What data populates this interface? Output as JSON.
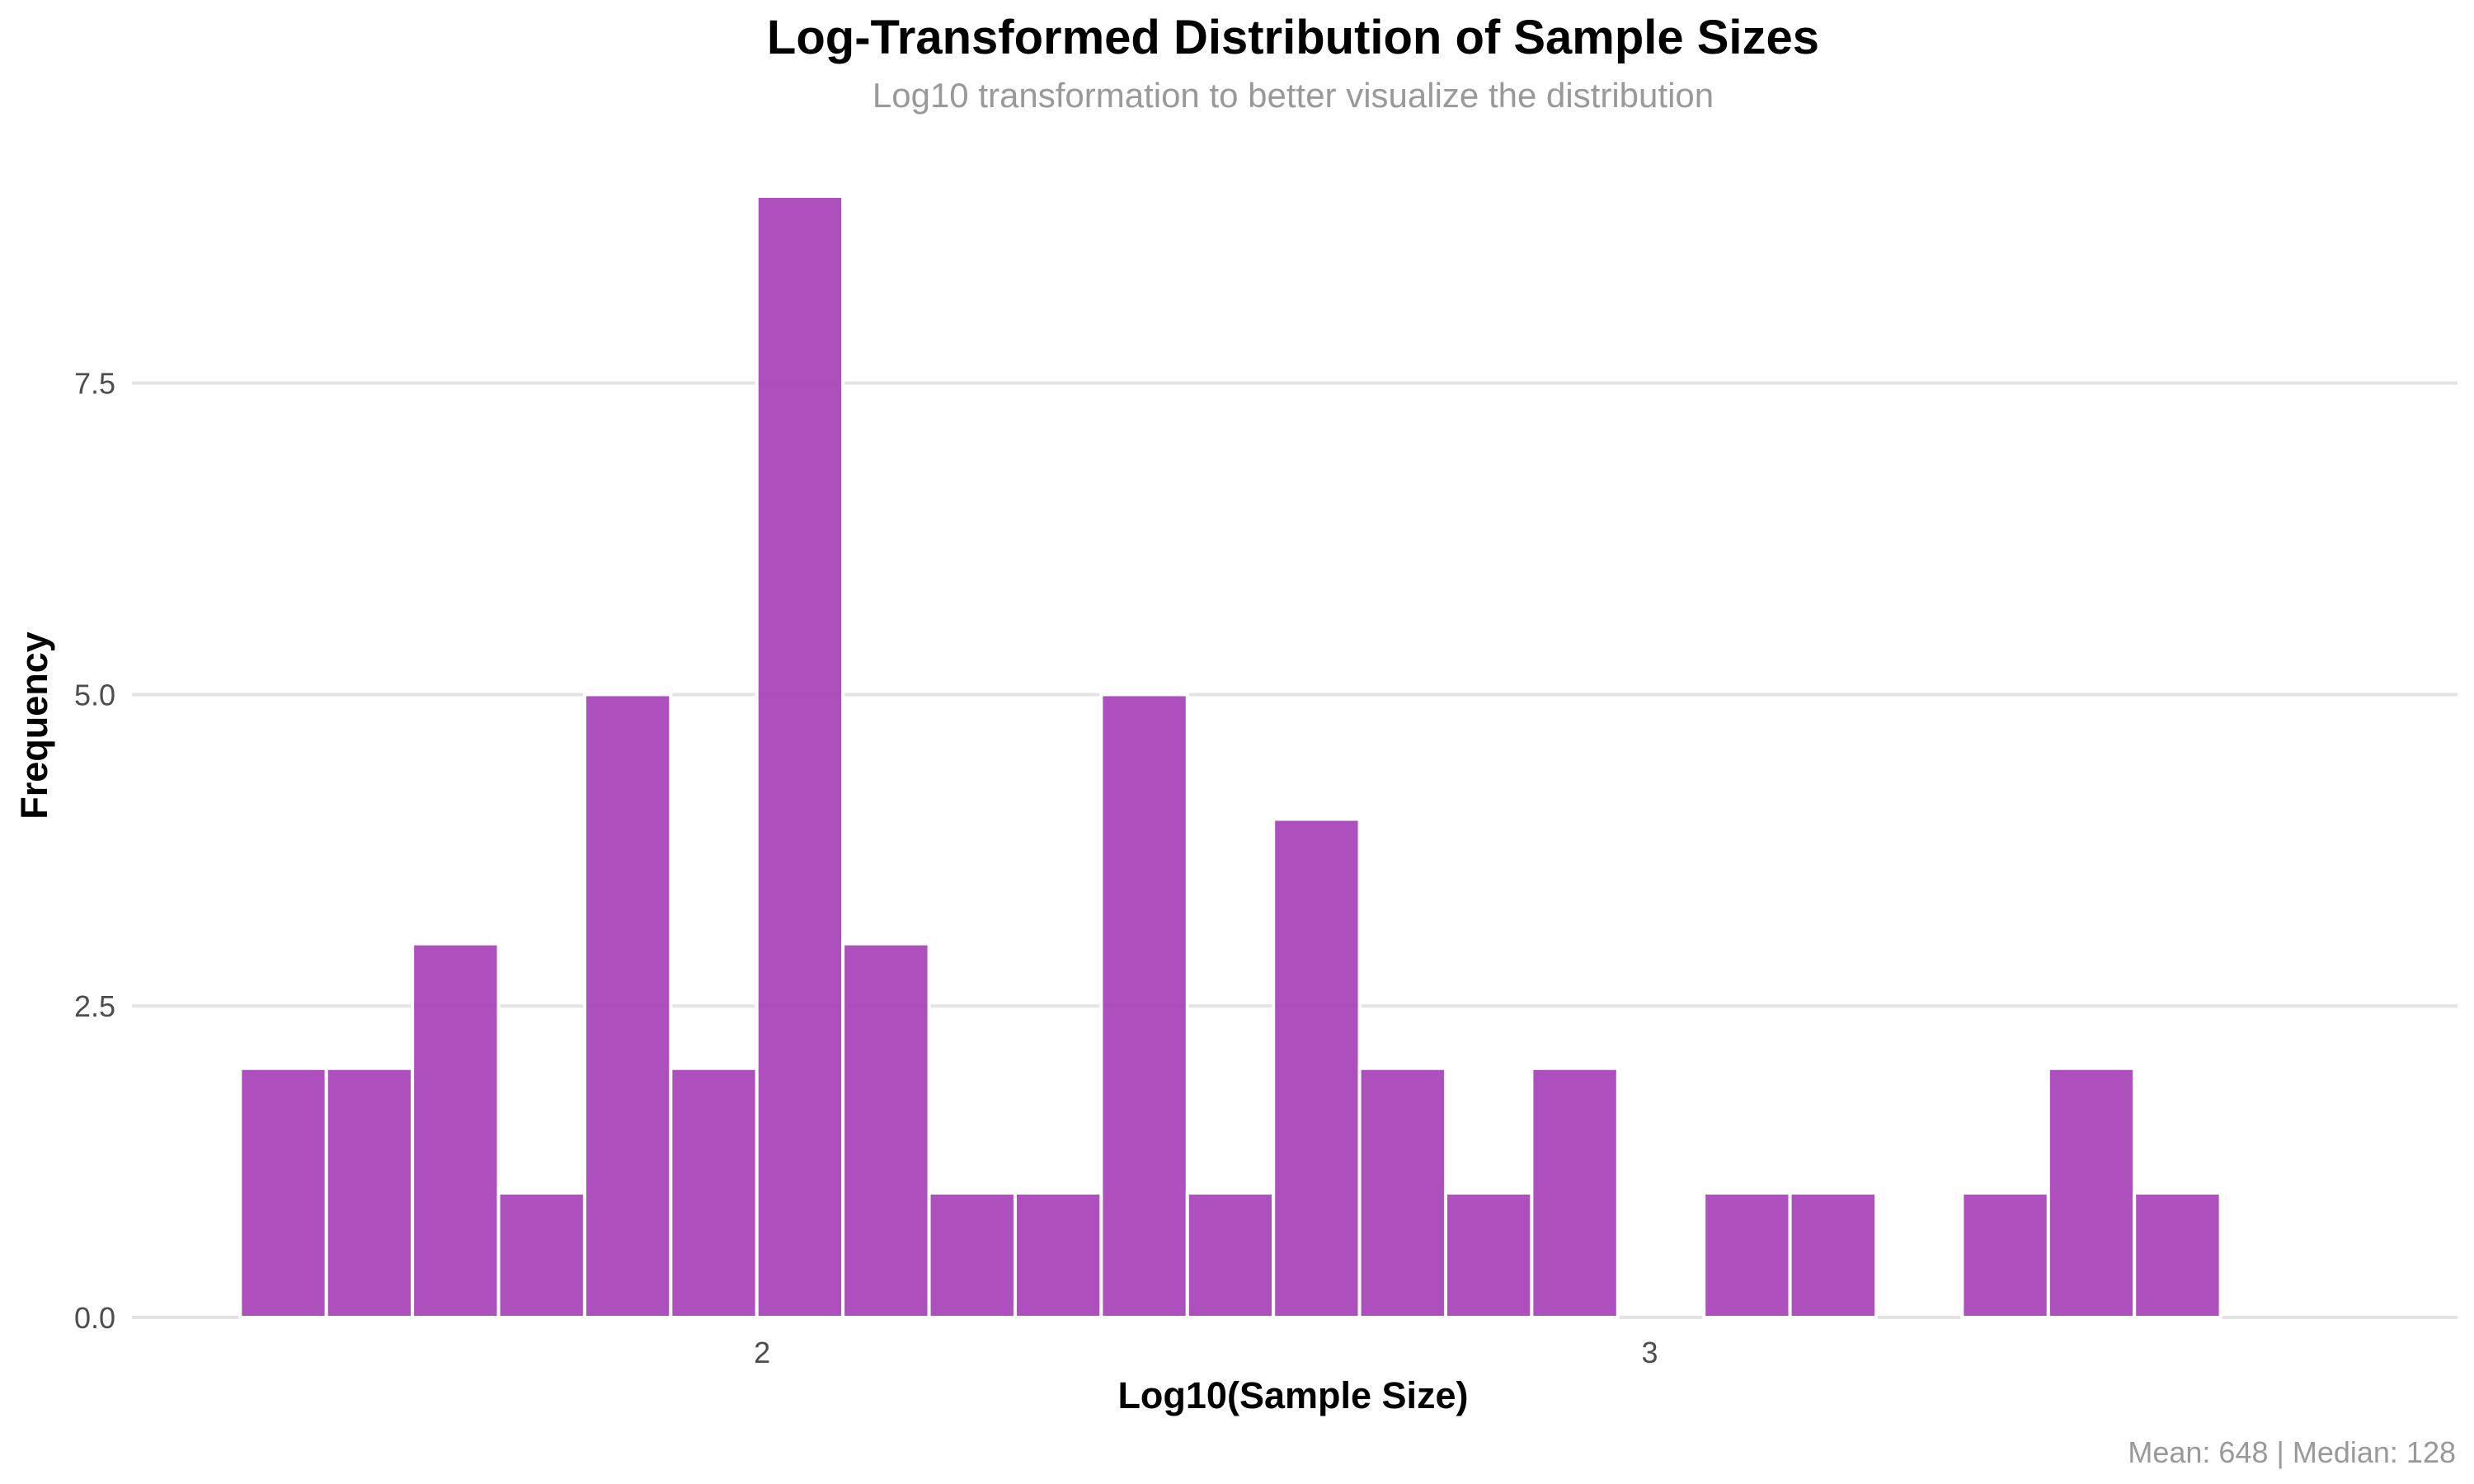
{
  "chart_data": {
    "type": "bar",
    "title": "Log-Transformed Distribution of Sample Sizes",
    "subtitle": "Log10 transformation to better visualize the distribution",
    "xlabel": "Log10(Sample Size)",
    "ylabel": "Frequency",
    "caption": "Mean: 648 | Median: 128",
    "bar_color": "#A43DB7",
    "bar_outline": "#FFFFFF",
    "grid": true,
    "grid_color": "#E3E3E3",
    "legend": "none",
    "xlim": [
      1.29,
      3.91
    ],
    "ylim": [
      0,
      9.45
    ],
    "xticks": [
      {
        "value": 2,
        "label": "2"
      },
      {
        "value": 3,
        "label": "3"
      }
    ],
    "yticks": [
      {
        "value": 0,
        "label": "0.0"
      },
      {
        "value": 2.5,
        "label": "2.5"
      },
      {
        "value": 5,
        "label": "5.0"
      },
      {
        "value": 7.5,
        "label": "7.5"
      }
    ],
    "bins": [
      {
        "x0": 1.412,
        "x1": 1.509,
        "count": 2
      },
      {
        "x0": 1.509,
        "x1": 1.606,
        "count": 2
      },
      {
        "x0": 1.606,
        "x1": 1.703,
        "count": 3
      },
      {
        "x0": 1.703,
        "x1": 1.8,
        "count": 1
      },
      {
        "x0": 1.8,
        "x1": 1.897,
        "count": 5
      },
      {
        "x0": 1.897,
        "x1": 1.994,
        "count": 2
      },
      {
        "x0": 1.994,
        "x1": 2.091,
        "count": 9
      },
      {
        "x0": 2.091,
        "x1": 2.188,
        "count": 3
      },
      {
        "x0": 2.188,
        "x1": 2.285,
        "count": 1
      },
      {
        "x0": 2.285,
        "x1": 2.382,
        "count": 1
      },
      {
        "x0": 2.382,
        "x1": 2.479,
        "count": 5
      },
      {
        "x0": 2.479,
        "x1": 2.576,
        "count": 1
      },
      {
        "x0": 2.576,
        "x1": 2.673,
        "count": 4
      },
      {
        "x0": 2.673,
        "x1": 2.77,
        "count": 2
      },
      {
        "x0": 2.77,
        "x1": 2.867,
        "count": 1
      },
      {
        "x0": 2.867,
        "x1": 2.964,
        "count": 2
      },
      {
        "x0": 2.964,
        "x1": 3.061,
        "count": 0
      },
      {
        "x0": 3.061,
        "x1": 3.158,
        "count": 1
      },
      {
        "x0": 3.158,
        "x1": 3.255,
        "count": 1
      },
      {
        "x0": 3.255,
        "x1": 3.352,
        "count": 0
      },
      {
        "x0": 3.352,
        "x1": 3.449,
        "count": 1
      },
      {
        "x0": 3.449,
        "x1": 3.546,
        "count": 2
      },
      {
        "x0": 3.546,
        "x1": 3.643,
        "count": 1
      }
    ]
  }
}
